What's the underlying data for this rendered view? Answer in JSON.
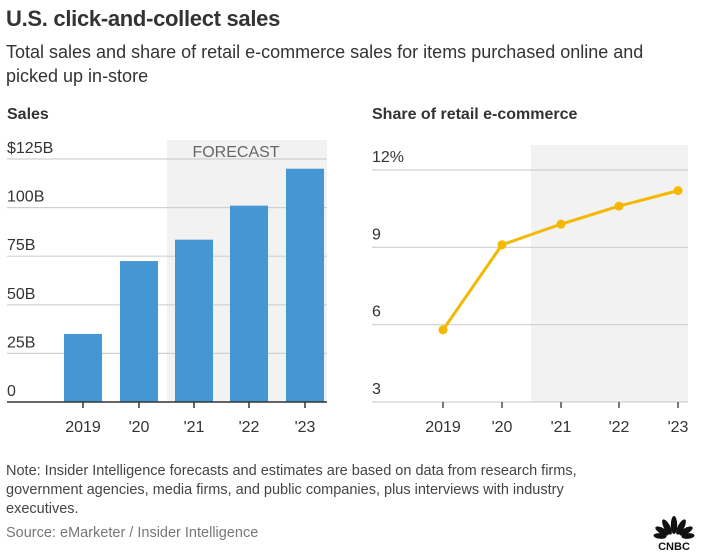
{
  "header": {
    "title": "U.S. click-and-collect sales",
    "subtitle": "Total sales and share of retail e-commerce sales for items purchased online and picked up in-store"
  },
  "colors": {
    "bar": "#4597D3",
    "line": "#F5B800",
    "forecast_shade": "#F2F2F2",
    "gridline": "#D0D0D0",
    "axis": "#333333"
  },
  "chart_data": [
    {
      "type": "bar",
      "title": "Sales",
      "categories": [
        "2019",
        "'20",
        "'21",
        "'22",
        "'23"
      ],
      "values": [
        35,
        72.5,
        83.5,
        101,
        120
      ],
      "unit": "billion USD",
      "ylim": [
        0,
        125
      ],
      "yticks": [
        0,
        25,
        50,
        75,
        100,
        125
      ],
      "ytick_labels": [
        "0",
        "25B",
        "50B",
        "75B",
        "100B",
        "$125B"
      ],
      "grid": true,
      "forecast": {
        "label": "FORECAST",
        "from_category": "'21",
        "to_category": "'23"
      }
    },
    {
      "type": "line",
      "title": "Share of retail e-commerce",
      "categories": [
        "2019",
        "'20",
        "'21",
        "'22",
        "'23"
      ],
      "values": [
        5.8,
        9.1,
        9.9,
        10.6,
        11.2
      ],
      "unit": "percent",
      "ylim": [
        3,
        12
      ],
      "yticks": [
        3,
        6,
        9,
        12
      ],
      "ytick_labels": [
        "3",
        "6",
        "9",
        "12%"
      ],
      "grid": true,
      "forecast": {
        "from_category": "'21",
        "to_category": "'23"
      }
    }
  ],
  "footer": {
    "note": "Note: Insider Intelligence forecasts and estimates are based on data from research firms, government agencies, media firms, and public companies, plus interviews with industry executives.",
    "source": "Source: eMarketer / Insider Intelligence",
    "logo_text": "CNBC"
  }
}
